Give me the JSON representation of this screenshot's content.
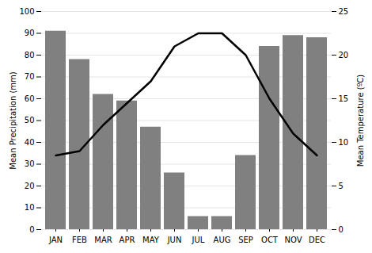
{
  "chart_data": {
    "type": "bar",
    "categories": [
      "JAN",
      "FEB",
      "MAR",
      "APR",
      "MAY",
      "JUN",
      "JUL",
      "AUG",
      "SEP",
      "OCT",
      "NOV",
      "DEC"
    ],
    "series": [
      {
        "type": "bar",
        "color": "#808080",
        "values": [
          91,
          78,
          62,
          59,
          47,
          26,
          6,
          6,
          34,
          84,
          89,
          88
        ]
      },
      {
        "type": "line",
        "color": "#000000",
        "axis": "y2",
        "values": [
          8.5,
          9.0,
          12.0,
          14.5,
          17.0,
          21.0,
          22.5,
          22.5,
          20.0,
          15.0,
          11.0,
          8.5
        ]
      }
    ],
    "ylabel": "Mean Precipitation (mm)",
    "y2label": "Mean Temperature (ºC)",
    "ylim": [
      0,
      100
    ],
    "yticks": [
      0,
      10,
      20,
      30,
      40,
      50,
      60,
      70,
      80,
      90,
      100
    ],
    "y2lim": [
      0,
      25
    ],
    "y2ticks": [
      0,
      5,
      10,
      15,
      20,
      25
    ],
    "grid": true
  }
}
